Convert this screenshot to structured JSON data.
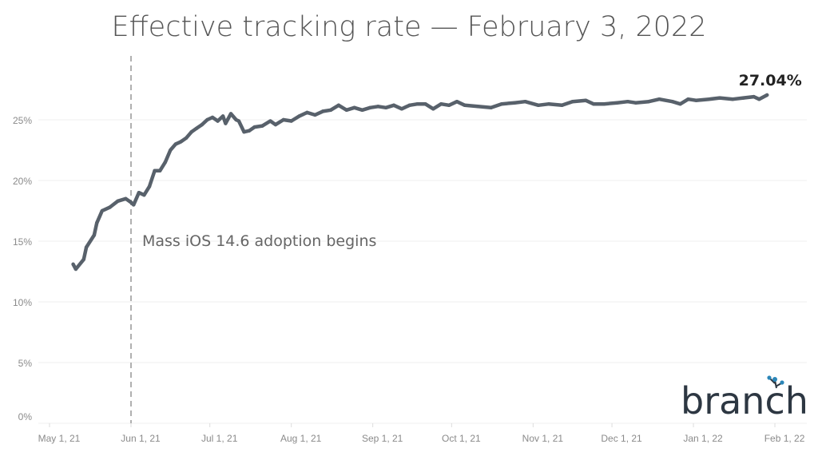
{
  "chart_data": {
    "type": "line",
    "title": "Effective tracking rate — February 3, 2022",
    "xlabel": "",
    "ylabel": "",
    "ylim": [
      0,
      29
    ],
    "yticks": [
      0,
      5,
      10,
      15,
      20,
      25
    ],
    "ytick_labels": [
      "0%",
      "5%",
      "10%",
      "15%",
      "20%",
      "25%"
    ],
    "xticks": [
      "2021-05-01",
      "2021-06-01",
      "2021-07-01",
      "2021-08-01",
      "2021-09-01",
      "2021-10-01",
      "2021-11-01",
      "2021-12-01",
      "2022-01-01",
      "2022-02-01"
    ],
    "xtick_labels": [
      "May 1, 21",
      "Jun 1, 21",
      "Jul 1, 21",
      "Aug 1, 21",
      "Sep 1, 21",
      "Oct 1, 21",
      "Nov 1, 21",
      "Dec 1, 21",
      "Jan 1, 22",
      "Feb 1, 22"
    ],
    "grid": "horizontal",
    "line_color": "#58616b",
    "annotation": {
      "date": "2021-06-01",
      "text": "Mass iOS 14.6 adoption begins",
      "style": "dashed vertical line"
    },
    "end_label": "27.04%",
    "points": [
      [
        "2021-05-10",
        13.1
      ],
      [
        "2021-05-11",
        12.7
      ],
      [
        "2021-05-14",
        13.5
      ],
      [
        "2021-05-15",
        14.5
      ],
      [
        "2021-05-18",
        15.5
      ],
      [
        "2021-05-19",
        16.5
      ],
      [
        "2021-05-21",
        17.5
      ],
      [
        "2021-05-24",
        17.8
      ],
      [
        "2021-05-27",
        18.3
      ],
      [
        "2021-05-30",
        18.5
      ],
      [
        "2021-06-01",
        18.2
      ],
      [
        "2021-06-02",
        18.0
      ],
      [
        "2021-06-04",
        19.0
      ],
      [
        "2021-06-06",
        18.8
      ],
      [
        "2021-06-08",
        19.5
      ],
      [
        "2021-06-10",
        20.8
      ],
      [
        "2021-06-12",
        20.8
      ],
      [
        "2021-06-14",
        21.5
      ],
      [
        "2021-06-16",
        22.5
      ],
      [
        "2021-06-18",
        23.0
      ],
      [
        "2021-06-20",
        23.2
      ],
      [
        "2021-06-22",
        23.5
      ],
      [
        "2021-06-24",
        24.0
      ],
      [
        "2021-06-26",
        24.3
      ],
      [
        "2021-06-28",
        24.6
      ],
      [
        "2021-06-30",
        25.0
      ],
      [
        "2021-07-02",
        25.2
      ],
      [
        "2021-07-04",
        24.9
      ],
      [
        "2021-07-06",
        25.3
      ],
      [
        "2021-07-07",
        24.7
      ],
      [
        "2021-07-09",
        25.5
      ],
      [
        "2021-07-11",
        25.0
      ],
      [
        "2021-07-12",
        24.9
      ],
      [
        "2021-07-14",
        24.0
      ],
      [
        "2021-07-16",
        24.1
      ],
      [
        "2021-07-18",
        24.4
      ],
      [
        "2021-07-21",
        24.5
      ],
      [
        "2021-07-24",
        24.9
      ],
      [
        "2021-07-26",
        24.6
      ],
      [
        "2021-07-29",
        25.0
      ],
      [
        "2021-08-01",
        24.9
      ],
      [
        "2021-08-04",
        25.3
      ],
      [
        "2021-08-07",
        25.6
      ],
      [
        "2021-08-10",
        25.4
      ],
      [
        "2021-08-13",
        25.7
      ],
      [
        "2021-08-16",
        25.8
      ],
      [
        "2021-08-19",
        26.2
      ],
      [
        "2021-08-22",
        25.8
      ],
      [
        "2021-08-25",
        26.0
      ],
      [
        "2021-08-28",
        25.8
      ],
      [
        "2021-08-31",
        26.0
      ],
      [
        "2021-09-03",
        26.1
      ],
      [
        "2021-09-06",
        26.0
      ],
      [
        "2021-09-09",
        26.2
      ],
      [
        "2021-09-12",
        25.9
      ],
      [
        "2021-09-15",
        26.2
      ],
      [
        "2021-09-18",
        26.3
      ],
      [
        "2021-09-21",
        26.3
      ],
      [
        "2021-09-24",
        25.9
      ],
      [
        "2021-09-27",
        26.3
      ],
      [
        "2021-09-30",
        26.2
      ],
      [
        "2021-10-03",
        26.5
      ],
      [
        "2021-10-06",
        26.2
      ],
      [
        "2021-10-11",
        26.1
      ],
      [
        "2021-10-16",
        26.0
      ],
      [
        "2021-10-20",
        26.3
      ],
      [
        "2021-10-25",
        26.4
      ],
      [
        "2021-10-29",
        26.5
      ],
      [
        "2021-11-03",
        26.2
      ],
      [
        "2021-11-07",
        26.3
      ],
      [
        "2021-11-12",
        26.2
      ],
      [
        "2021-11-16",
        26.5
      ],
      [
        "2021-11-21",
        26.6
      ],
      [
        "2021-11-24",
        26.3
      ],
      [
        "2021-11-28",
        26.3
      ],
      [
        "2021-12-03",
        26.4
      ],
      [
        "2021-12-07",
        26.5
      ],
      [
        "2021-12-10",
        26.4
      ],
      [
        "2021-12-15",
        26.5
      ],
      [
        "2021-12-19",
        26.7
      ],
      [
        "2021-12-24",
        26.5
      ],
      [
        "2021-12-27",
        26.3
      ],
      [
        "2021-12-30",
        26.7
      ],
      [
        "2022-01-02",
        26.6
      ],
      [
        "2022-01-07",
        26.7
      ],
      [
        "2022-01-11",
        26.8
      ],
      [
        "2022-01-16",
        26.7
      ],
      [
        "2022-01-20",
        26.8
      ],
      [
        "2022-01-24",
        26.9
      ],
      [
        "2022-01-26",
        26.7
      ],
      [
        "2022-01-29",
        27.04
      ]
    ]
  },
  "logo": {
    "text": "branch",
    "accent": "#2b86b8"
  }
}
